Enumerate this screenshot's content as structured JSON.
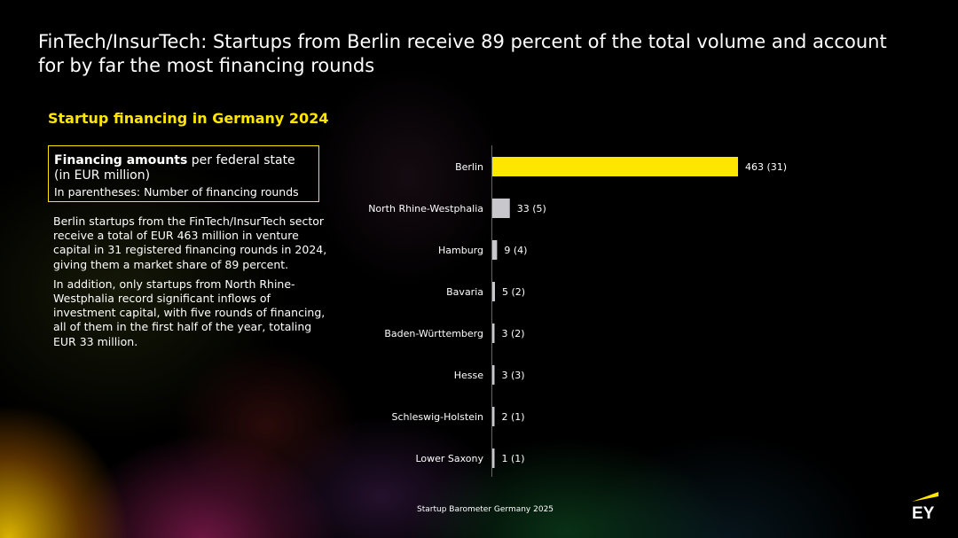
{
  "title": "FinTech/InsurTech: Startups from Berlin receive 89 percent of the total volume and account for by far the most financing rounds",
  "subtitle": "Startup financing in Germany 2024",
  "legend_box": {
    "bold": "Financing amounts",
    "rest": " per federal state",
    "unit": "(in EUR million)",
    "note": "In parentheses: Number of financing rounds"
  },
  "paragraphs": [
    "Berlin startups from the FinTech/InsurTech sector receive a total of EUR 463 million in venture capital in 31 registered financing rounds in 2024, giving them a market share of 89 percent.",
    "In addition, only startups from North Rhine-Westphalia record significant inflows of investment capital, with five rounds of financing, all of them in the first half of the year, totaling EUR 33 million."
  ],
  "source": "Startup Barometer Germany 2025",
  "logo_text": "EY",
  "colors": {
    "accent": "#ffe600",
    "bar_other": "#c8c8cc"
  },
  "chart_data": {
    "type": "bar",
    "orientation": "horizontal",
    "categories": [
      "Berlin",
      "North Rhine-Westphalia",
      "Hamburg",
      "Bavaria",
      "Baden-Württemberg",
      "Hesse",
      "Schleswig-Holstein",
      "Lower Saxony"
    ],
    "values": [
      463,
      33,
      9,
      5,
      3,
      3,
      2,
      1
    ],
    "rounds": [
      31,
      5,
      4,
      2,
      2,
      3,
      1,
      1
    ],
    "labels": [
      "463 (31)",
      "33 (5)",
      "9 (4)",
      "5 (2)",
      "3 (2)",
      "3 (3)",
      "2 (1)",
      "1 (1)"
    ],
    "highlight_color": "#ffe600",
    "other_color": "#c8c8cc",
    "xlim": [
      0,
      463
    ],
    "grid": false
  }
}
